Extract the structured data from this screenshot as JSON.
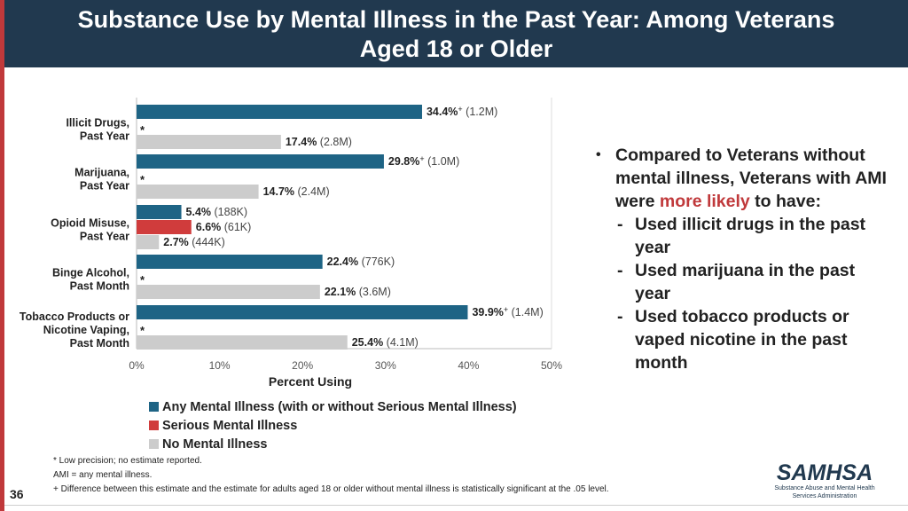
{
  "header": {
    "title_line1": "Substance Use by Mental Illness in the Past Year: Among Veterans",
    "title_line2": "Aged 18 or Older"
  },
  "colors": {
    "any_mental_illness": "#1e6485",
    "serious_mental_illness": "#d03c3c",
    "no_mental_illness": "#cccccc",
    "accent": "#c0393b",
    "title_bar": "#21394f"
  },
  "chart_data": {
    "type": "bar",
    "orientation": "horizontal",
    "title": "",
    "xlabel": "Percent Using",
    "ylabel": "",
    "xlim": [
      0,
      50
    ],
    "x_ticks": [
      "0%",
      "10%",
      "20%",
      "30%",
      "40%",
      "50%"
    ],
    "groups": [
      {
        "label_lines": [
          "Illicit Drugs,",
          "Past Year"
        ],
        "bars": [
          {
            "series": "Any Mental Illness (with or without Serious Mental Illness)",
            "value": 34.4,
            "value_label": "34.4%",
            "mark": "+",
            "extra": "(1.2M)"
          },
          {
            "series": "No Mental Illness",
            "value": 17.4,
            "value_label": "17.4%",
            "mark": "",
            "extra": "(2.8M)"
          }
        ],
        "serious_note": "*"
      },
      {
        "label_lines": [
          "Marijuana,",
          "Past Year"
        ],
        "bars": [
          {
            "series": "Any Mental Illness (with or without Serious Mental Illness)",
            "value": 29.8,
            "value_label": "29.8%",
            "mark": "+",
            "extra": "(1.0M)"
          },
          {
            "series": "No Mental Illness",
            "value": 14.7,
            "value_label": "14.7%",
            "mark": "",
            "extra": "(2.4M)"
          }
        ],
        "serious_note": "*"
      },
      {
        "label_lines": [
          "Opioid Misuse,",
          "Past Year"
        ],
        "bars": [
          {
            "series": "Any Mental Illness (with or without Serious Mental Illness)",
            "value": 5.4,
            "value_label": "5.4%",
            "mark": "",
            "extra": "(188K)"
          },
          {
            "series": "Serious Mental Illness",
            "value": 6.6,
            "value_label": "6.6%",
            "mark": "",
            "extra": "(61K)"
          },
          {
            "series": "No Mental Illness",
            "value": 2.7,
            "value_label": "2.7%",
            "mark": "",
            "extra": "(444K)"
          }
        ],
        "serious_note": ""
      },
      {
        "label_lines": [
          "Binge Alcohol,",
          "Past Month"
        ],
        "bars": [
          {
            "series": "Any Mental Illness (with or without Serious Mental Illness)",
            "value": 22.4,
            "value_label": "22.4%",
            "mark": "",
            "extra": "(776K)"
          },
          {
            "series": "No Mental Illness",
            "value": 22.1,
            "value_label": "22.1%",
            "mark": "",
            "extra": "(3.6M)"
          }
        ],
        "serious_note": "*"
      },
      {
        "label_lines": [
          "Tobacco Products or",
          "Nicotine Vaping,",
          "Past Month"
        ],
        "bars": [
          {
            "series": "Any Mental Illness (with or without Serious Mental Illness)",
            "value": 39.9,
            "value_label": "39.9%",
            "mark": "+",
            "extra": "(1.4M)"
          },
          {
            "series": "No Mental Illness",
            "value": 25.4,
            "value_label": "25.4%",
            "mark": "",
            "extra": "(4.1M)"
          }
        ],
        "serious_note": "*"
      }
    ],
    "legend": [
      {
        "label": "Any Mental Illness (with or without Serious Mental Illness)",
        "color": "#1e6485"
      },
      {
        "label": "Serious Mental Illness",
        "color": "#d03c3c"
      },
      {
        "label": "No Mental Illness",
        "color": "#cccccc"
      }
    ]
  },
  "bullets": {
    "main_prefix": "Compared to Veterans without mental illness, Veterans with AMI were ",
    "main_highlight": "more likely",
    "main_suffix": " to have:",
    "dash": "-",
    "subs": [
      "Used illicit drugs in the past year",
      "Used marijuana in the past year",
      "Used tobacco products or vaped nicotine in the past month"
    ]
  },
  "footnotes": {
    "line1": "* Low precision; no estimate reported.",
    "line2": "AMI = any mental illness.",
    "line3": "+ Difference between this estimate and the estimate for adults aged 18 or older without mental illness is statistically significant at the .05 level."
  },
  "slide_number": "36",
  "logo": {
    "word": "SAMHSA",
    "sub1": "Substance Abuse and Mental Health",
    "sub2": "Services Administration"
  }
}
